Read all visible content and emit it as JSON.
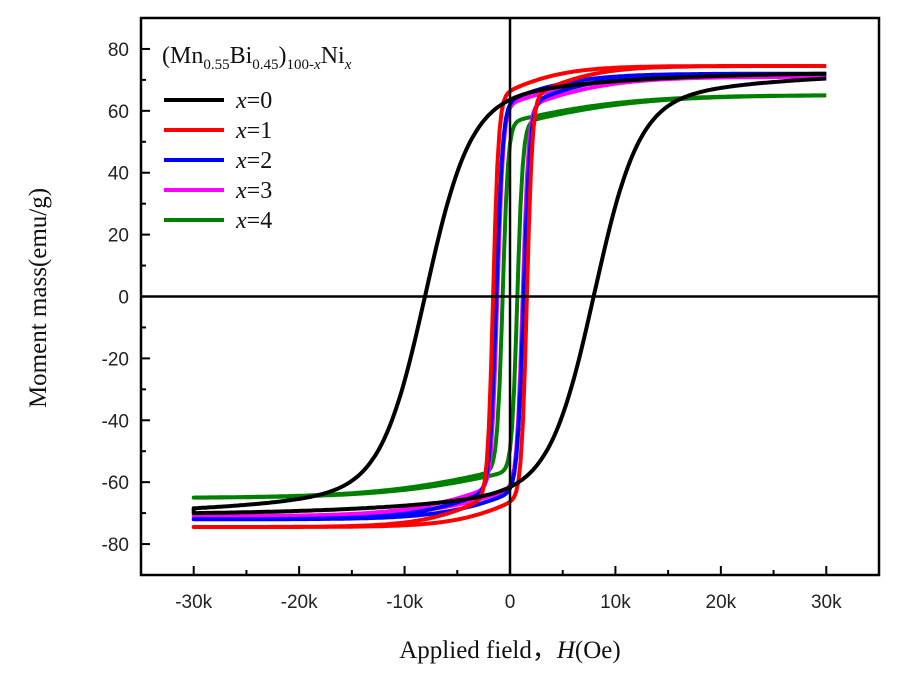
{
  "chart_data": {
    "type": "line",
    "xlabel_prefix": "Applied field，",
    "xlabel_var": "H",
    "xlabel_unit": "(Oe)",
    "ylabel": "Moment mass(emu/g)",
    "xlim": [
      -35000,
      35000
    ],
    "ylim": [
      -90,
      90
    ],
    "x_ticks": [
      -30000,
      -20000,
      -10000,
      0,
      10000,
      20000,
      30000
    ],
    "x_tick_labels": [
      "-30k",
      "-20k",
      "-10k",
      "0",
      "10k",
      "20k",
      "30k"
    ],
    "y_ticks": [
      -80,
      -60,
      -40,
      -20,
      0,
      20,
      40,
      60,
      80
    ],
    "y_tick_labels": [
      "-80",
      "-60",
      "-40",
      "-20",
      "0",
      "20",
      "40",
      "60",
      "80"
    ],
    "legend_title": {
      "open": "(Mn",
      "s1": "0.55",
      "mid": "Bi",
      "s2": "0.45",
      "close": ")",
      "s3": "100-",
      "s3var": "x",
      "el": "Ni",
      "s4": "x"
    },
    "legend_location": "top-left",
    "series": [
      {
        "name": "x=0",
        "label_var": "x",
        "label_val": "=0",
        "color": "#000000",
        "Ms": 72,
        "Mlow": -70,
        "Hc": 8000,
        "w": 4200,
        "H0": 20000
      },
      {
        "name": "x=1",
        "label_var": "x",
        "label_val": "=1",
        "color": "#ff0000",
        "Ms": 74.5,
        "Mlow": -74.5,
        "Hc": 1600,
        "w": 520,
        "H0": 6500
      },
      {
        "name": "x=2",
        "label_var": "x",
        "label_val": "=2",
        "color": "#0000ff",
        "Ms": 72,
        "Mlow": -72,
        "Hc": 1300,
        "w": 600,
        "H0": 7500
      },
      {
        "name": "x=3",
        "label_var": "x",
        "label_val": "=3",
        "color": "#ff00ff",
        "Ms": 71,
        "Mlow": -71,
        "Hc": 1200,
        "w": 550,
        "H0": 8500
      },
      {
        "name": "x=4",
        "label_var": "x",
        "label_val": "=4",
        "color": "#008000",
        "Ms": 65,
        "Mlow": -65,
        "Hc": 700,
        "w": 520,
        "H0": 12000
      }
    ]
  }
}
